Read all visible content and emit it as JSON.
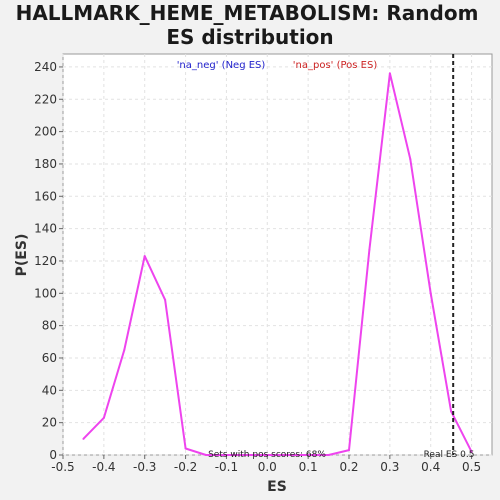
{
  "chart_data": {
    "type": "line",
    "title_lines": [
      "HALLMARK_HEME_METABOLISM: Random",
      "ES distribution"
    ],
    "xlabel": "ES",
    "ylabel": "P(ES)",
    "xlim": [
      -0.5,
      0.55
    ],
    "ylim": [
      0,
      248
    ],
    "x_ticks": [
      "-0.5",
      "-0.4",
      "-0.3",
      "-0.2",
      "-0.1",
      "0.0",
      "0.1",
      "0.2",
      "0.3",
      "0.4",
      "0.5"
    ],
    "x_tick_values": [
      -0.5,
      -0.4,
      -0.3,
      -0.2,
      -0.1,
      0.0,
      0.1,
      0.2,
      0.3,
      0.4,
      0.5
    ],
    "y_ticks": [
      "0",
      "20",
      "40",
      "60",
      "80",
      "100",
      "120",
      "140",
      "160",
      "180",
      "200",
      "220",
      "240"
    ],
    "y_tick_values": [
      0,
      20,
      40,
      60,
      80,
      100,
      120,
      140,
      160,
      180,
      200,
      220,
      240
    ],
    "grid": true,
    "legend": {
      "placement": "top-center",
      "entries": [
        {
          "label": "'na_neg' (Neg ES)",
          "color": "#2222cc"
        },
        {
          "label": "'na_pos' (Pos ES)",
          "color": "#cc2222"
        }
      ]
    },
    "series": [
      {
        "color": "#ee44ee",
        "x": [
          -0.45,
          -0.4,
          -0.35,
          -0.3,
          -0.25,
          -0.2,
          -0.15,
          -0.1,
          -0.05,
          0.0,
          0.05,
          0.1,
          0.15,
          0.2,
          0.25,
          0.3,
          0.35,
          0.4,
          0.45,
          0.5
        ],
        "y": [
          10,
          23,
          65,
          123,
          96,
          4,
          0,
          0,
          0,
          0,
          0,
          0,
          0,
          3,
          127,
          236,
          183,
          100,
          27,
          2
        ]
      }
    ],
    "real_es": {
      "value": 0.455,
      "label": "Real ES 0.5"
    },
    "annotation": "Sets with pos scores: 68%"
  }
}
